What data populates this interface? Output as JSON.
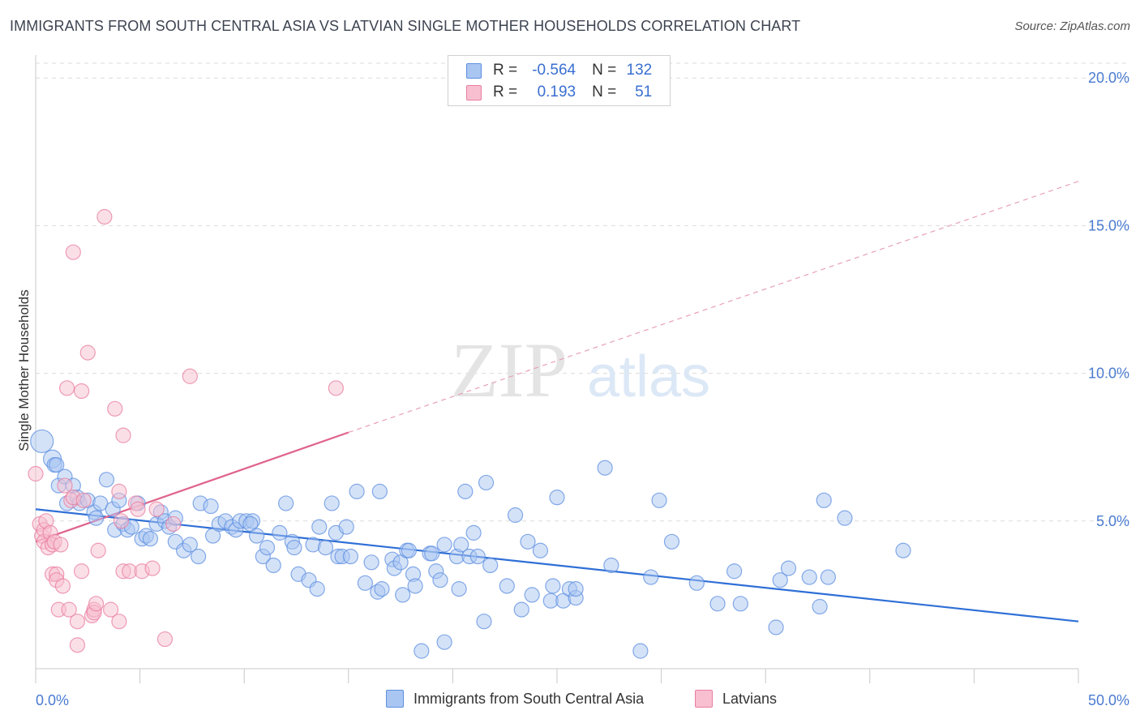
{
  "title": "IMMIGRANTS FROM SOUTH CENTRAL ASIA VS LATVIAN SINGLE MOTHER HOUSEHOLDS CORRELATION CHART",
  "source": "Source: ZipAtlas.com",
  "watermark": {
    "zip": "ZIP",
    "atlas": "atlas"
  },
  "legend": {
    "rows": [
      {
        "r_label": "R =",
        "r_value": "-0.564",
        "n_label": "N =",
        "n_value": "132",
        "color": "#a9c6f2",
        "border": "#5d8fe0"
      },
      {
        "r_label": "R =",
        "r_value": "0.193",
        "n_label": "N =",
        "n_value": "51",
        "color": "#f8bfd0",
        "border": "#e87ea0"
      }
    ]
  },
  "bottom_legend": [
    {
      "label": "Immigrants from South Central Asia",
      "color": "#a9c6f2",
      "border": "#5d8fe0"
    },
    {
      "label": "Latvians",
      "color": "#f8bfd0",
      "border": "#e87ea0"
    }
  ],
  "chart_data": {
    "type": "scatter",
    "title": "IMMIGRANTS FROM SOUTH CENTRAL ASIA VS LATVIAN SINGLE MOTHER HOUSEHOLDS CORRELATION CHART",
    "xlabel": "",
    "ylabel": "Single Mother Households",
    "xlim": [
      0,
      50
    ],
    "ylim": [
      0,
      20.5
    ],
    "x_tick_labels": [
      "0.0%",
      "50.0%"
    ],
    "y_ticks": [
      5,
      10,
      15,
      20
    ],
    "y_tick_labels": [
      "5.0%",
      "10.0%",
      "15.0%",
      "20.0%"
    ],
    "grid": true,
    "series": [
      {
        "name": "Immigrants from South Central Asia",
        "color": "#5d8fe0",
        "fill": "#a9c6f2",
        "trend": {
          "x0": 0,
          "y0": 5.4,
          "x1": 50,
          "y1": 1.6,
          "solid": true
        },
        "points": [
          [
            0.3,
            7.7
          ],
          [
            0.8,
            7.1
          ],
          [
            0.9,
            6.9
          ],
          [
            1.0,
            6.9
          ],
          [
            1.1,
            6.2
          ],
          [
            1.4,
            6.5
          ],
          [
            1.5,
            5.6
          ],
          [
            1.8,
            6.2
          ],
          [
            2.0,
            5.8
          ],
          [
            2.1,
            5.6
          ],
          [
            2.5,
            5.7
          ],
          [
            2.8,
            5.3
          ],
          [
            2.9,
            5.1
          ],
          [
            3.1,
            5.6
          ],
          [
            3.4,
            6.4
          ],
          [
            3.7,
            5.4
          ],
          [
            3.8,
            4.7
          ],
          [
            4.0,
            5.7
          ],
          [
            4.2,
            4.9
          ],
          [
            4.4,
            4.7
          ],
          [
            4.6,
            4.8
          ],
          [
            4.9,
            5.6
          ],
          [
            5.1,
            4.4
          ],
          [
            5.3,
            4.5
          ],
          [
            5.5,
            4.4
          ],
          [
            5.8,
            4.9
          ],
          [
            6.0,
            5.3
          ],
          [
            6.2,
            5.0
          ],
          [
            6.4,
            4.8
          ],
          [
            6.7,
            5.1
          ],
          [
            6.7,
            4.3
          ],
          [
            7.1,
            4.0
          ],
          [
            7.4,
            4.2
          ],
          [
            7.8,
            3.8
          ],
          [
            7.9,
            5.6
          ],
          [
            8.4,
            5.5
          ],
          [
            8.5,
            4.5
          ],
          [
            8.8,
            4.9
          ],
          [
            9.1,
            5.0
          ],
          [
            9.4,
            4.8
          ],
          [
            9.6,
            4.7
          ],
          [
            9.8,
            5.0
          ],
          [
            10.1,
            5.0
          ],
          [
            10.4,
            5.0
          ],
          [
            10.3,
            4.9
          ],
          [
            10.6,
            4.5
          ],
          [
            10.9,
            3.8
          ],
          [
            11.1,
            4.1
          ],
          [
            11.4,
            3.5
          ],
          [
            11.7,
            4.6
          ],
          [
            12.0,
            5.6
          ],
          [
            12.3,
            4.3
          ],
          [
            12.4,
            4.1
          ],
          [
            12.6,
            3.2
          ],
          [
            13.1,
            3.0
          ],
          [
            13.3,
            4.2
          ],
          [
            13.5,
            2.7
          ],
          [
            13.6,
            4.8
          ],
          [
            13.9,
            4.1
          ],
          [
            14.2,
            5.6
          ],
          [
            14.4,
            4.6
          ],
          [
            14.5,
            3.8
          ],
          [
            14.7,
            3.8
          ],
          [
            14.9,
            4.8
          ],
          [
            15.1,
            3.8
          ],
          [
            15.4,
            6.0
          ],
          [
            15.8,
            2.9
          ],
          [
            16.1,
            3.6
          ],
          [
            16.4,
            2.6
          ],
          [
            16.5,
            6.0
          ],
          [
            16.6,
            2.7
          ],
          [
            17.1,
            3.7
          ],
          [
            17.2,
            3.4
          ],
          [
            17.5,
            3.6
          ],
          [
            17.6,
            2.5
          ],
          [
            17.8,
            4.0
          ],
          [
            17.9,
            4.0
          ],
          [
            18.1,
            3.2
          ],
          [
            18.2,
            2.8
          ],
          [
            18.5,
            0.6
          ],
          [
            18.9,
            3.9
          ],
          [
            19.0,
            3.9
          ],
          [
            19.2,
            3.3
          ],
          [
            19.4,
            3.0
          ],
          [
            19.6,
            4.2
          ],
          [
            19.6,
            0.9
          ],
          [
            20.2,
            3.8
          ],
          [
            20.3,
            2.7
          ],
          [
            20.4,
            4.2
          ],
          [
            20.6,
            6.0
          ],
          [
            20.8,
            3.8
          ],
          [
            21.0,
            4.6
          ],
          [
            21.2,
            3.8
          ],
          [
            21.5,
            1.6
          ],
          [
            21.6,
            6.3
          ],
          [
            21.8,
            3.5
          ],
          [
            22.6,
            2.8
          ],
          [
            23.0,
            5.2
          ],
          [
            23.3,
            2.0
          ],
          [
            23.6,
            4.3
          ],
          [
            23.8,
            2.5
          ],
          [
            24.2,
            4.0
          ],
          [
            24.7,
            2.3
          ],
          [
            24.8,
            2.8
          ],
          [
            25.0,
            5.8
          ],
          [
            25.3,
            2.3
          ],
          [
            25.6,
            2.7
          ],
          [
            25.9,
            2.4
          ],
          [
            25.9,
            2.7
          ],
          [
            27.3,
            6.8
          ],
          [
            27.6,
            3.5
          ],
          [
            29.0,
            0.6
          ],
          [
            29.5,
            3.1
          ],
          [
            29.9,
            5.7
          ],
          [
            30.5,
            4.3
          ],
          [
            31.7,
            2.9
          ],
          [
            32.7,
            2.2
          ],
          [
            33.5,
            3.3
          ],
          [
            33.8,
            2.2
          ],
          [
            35.5,
            1.4
          ],
          [
            35.7,
            3.0
          ],
          [
            36.1,
            3.4
          ],
          [
            37.1,
            3.1
          ],
          [
            37.6,
            2.1
          ],
          [
            37.8,
            5.7
          ],
          [
            38.0,
            3.1
          ],
          [
            38.8,
            5.1
          ],
          [
            41.6,
            4.0
          ]
        ]
      },
      {
        "name": "Latvians",
        "color": "#e87ea0",
        "fill": "#f8bfd0",
        "trend": {
          "x0": 0,
          "y0": 4.3,
          "x1": 15,
          "y1": 8.0,
          "dash_to_x": 50,
          "dash_to_y": 16.5
        },
        "points": [
          [
            0.0,
            6.6
          ],
          [
            0.2,
            4.9
          ],
          [
            0.3,
            4.5
          ],
          [
            0.4,
            4.7
          ],
          [
            0.4,
            4.3
          ],
          [
            0.5,
            5.0
          ],
          [
            0.6,
            4.1
          ],
          [
            0.7,
            4.6
          ],
          [
            0.8,
            4.2
          ],
          [
            0.8,
            3.2
          ],
          [
            0.9,
            4.3
          ],
          [
            1.0,
            3.2
          ],
          [
            1.0,
            3.0
          ],
          [
            1.1,
            2.0
          ],
          [
            1.2,
            4.2
          ],
          [
            1.3,
            2.8
          ],
          [
            1.4,
            6.2
          ],
          [
            1.5,
            9.5
          ],
          [
            1.6,
            2.0
          ],
          [
            1.7,
            5.7
          ],
          [
            1.8,
            5.8
          ],
          [
            1.8,
            14.1
          ],
          [
            2.0,
            0.8
          ],
          [
            2.0,
            1.6
          ],
          [
            2.2,
            9.4
          ],
          [
            2.2,
            3.3
          ],
          [
            2.3,
            5.7
          ],
          [
            2.5,
            10.7
          ],
          [
            2.7,
            1.8
          ],
          [
            2.8,
            2.0
          ],
          [
            2.8,
            1.9
          ],
          [
            2.9,
            2.2
          ],
          [
            3.0,
            4.0
          ],
          [
            3.3,
            15.3
          ],
          [
            3.6,
            2.0
          ],
          [
            3.8,
            8.8
          ],
          [
            4.0,
            6.0
          ],
          [
            4.0,
            1.6
          ],
          [
            4.1,
            5.0
          ],
          [
            4.2,
            7.9
          ],
          [
            4.2,
            3.3
          ],
          [
            4.5,
            3.3
          ],
          [
            4.8,
            5.6
          ],
          [
            4.9,
            5.4
          ],
          [
            5.1,
            3.3
          ],
          [
            5.6,
            3.4
          ],
          [
            5.8,
            5.4
          ],
          [
            6.2,
            1.0
          ],
          [
            6.6,
            4.9
          ],
          [
            7.4,
            9.9
          ],
          [
            14.4,
            9.5
          ]
        ]
      }
    ]
  }
}
